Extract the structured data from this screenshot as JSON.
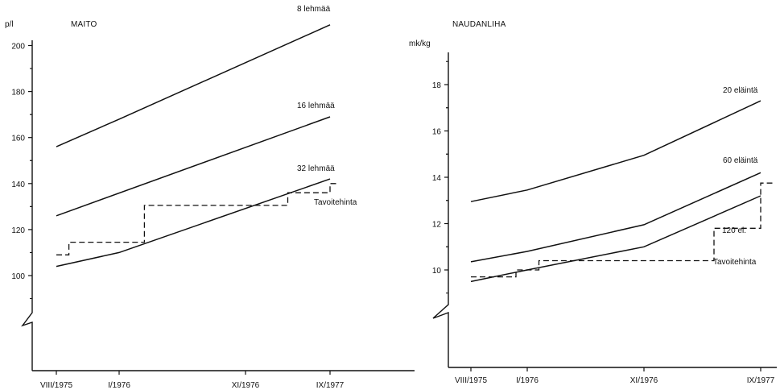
{
  "chart_data": [
    {
      "type": "line",
      "title": "MAITO",
      "ylabel": "p/l",
      "ylim": [
        80,
        200
      ],
      "y_ticks": [
        "100",
        "120",
        "140",
        "160",
        "180",
        "200"
      ],
      "x_ticks": [
        "VIII/1975",
        "I/1976",
        "XI/1976",
        "IX/1977"
      ],
      "series": [
        {
          "name": "8 lehmää",
          "style": "solid",
          "points": [
            [
              "VIII/1975",
              156
            ],
            [
              "I/1976",
              168
            ],
            [
              "IX/1977",
              209
            ]
          ]
        },
        {
          "name": "16 lehmää",
          "style": "solid",
          "points": [
            [
              "VIII/1975",
              126
            ],
            [
              "IX/1977",
              169
            ]
          ]
        },
        {
          "name": "32 lehmää",
          "style": "solid",
          "points": [
            [
              "VIII/1975",
              104
            ],
            [
              "I/1976",
              110
            ],
            [
              "IX/1977",
              142
            ]
          ]
        },
        {
          "name": "Tavoitehinta",
          "style": "dashed",
          "points": [
            [
              "VIII/1975",
              109
            ],
            [
              "1975-09",
              109
            ],
            [
              "1975-09",
              114.5
            ],
            [
              "1976-03",
              114.5
            ],
            [
              "1976-03",
              130.5
            ],
            [
              "1977-04",
              130.5
            ],
            [
              "1977-04",
              136
            ],
            [
              "IX/1977",
              136
            ],
            [
              "IX/1977",
              140
            ],
            [
              "1977-10",
              140
            ]
          ]
        }
      ]
    },
    {
      "type": "line",
      "title": "NAUDANLIHA",
      "ylabel": "mk/kg",
      "ylim": [
        8,
        20
      ],
      "y_ticks": [
        "10",
        "12",
        "14",
        "16",
        "18"
      ],
      "x_ticks": [
        "VIII/1975",
        "I/1976",
        "XI/1976",
        "IX/1977"
      ],
      "series": [
        {
          "name": "20 eläintä",
          "style": "solid",
          "points": [
            [
              "VIII/1975",
              12.95
            ],
            [
              "I/1976",
              13.45
            ],
            [
              "XI/1976",
              14.95
            ],
            [
              "IX/1977",
              17.3
            ]
          ]
        },
        {
          "name": "60 eläintä",
          "style": "solid",
          "points": [
            [
              "VIII/1975",
              10.35
            ],
            [
              "I/1976",
              10.8
            ],
            [
              "XI/1976",
              11.95
            ],
            [
              "IX/1977",
              14.2
            ]
          ]
        },
        {
          "name": "120 el.",
          "style": "solid",
          "points": [
            [
              "VIII/1975",
              9.5
            ],
            [
              "I/1976",
              10.0
            ],
            [
              "XI/1976",
              11.0
            ],
            [
              "IX/1977",
              13.2
            ]
          ]
        },
        {
          "name": "Tavoitehinta",
          "style": "dashed",
          "points": [
            [
              "VIII/1975",
              9.7
            ],
            [
              "1975-12",
              9.7
            ],
            [
              "1975-12",
              10.0
            ],
            [
              "1976-02",
              10.0
            ],
            [
              "1976-02",
              10.4
            ],
            [
              "1977-05",
              10.4
            ],
            [
              "1977-05",
              11.8
            ],
            [
              "IX/1977",
              11.8
            ],
            [
              "IX/1977",
              13.75
            ],
            [
              "1977-10",
              13.75
            ]
          ]
        }
      ]
    }
  ]
}
